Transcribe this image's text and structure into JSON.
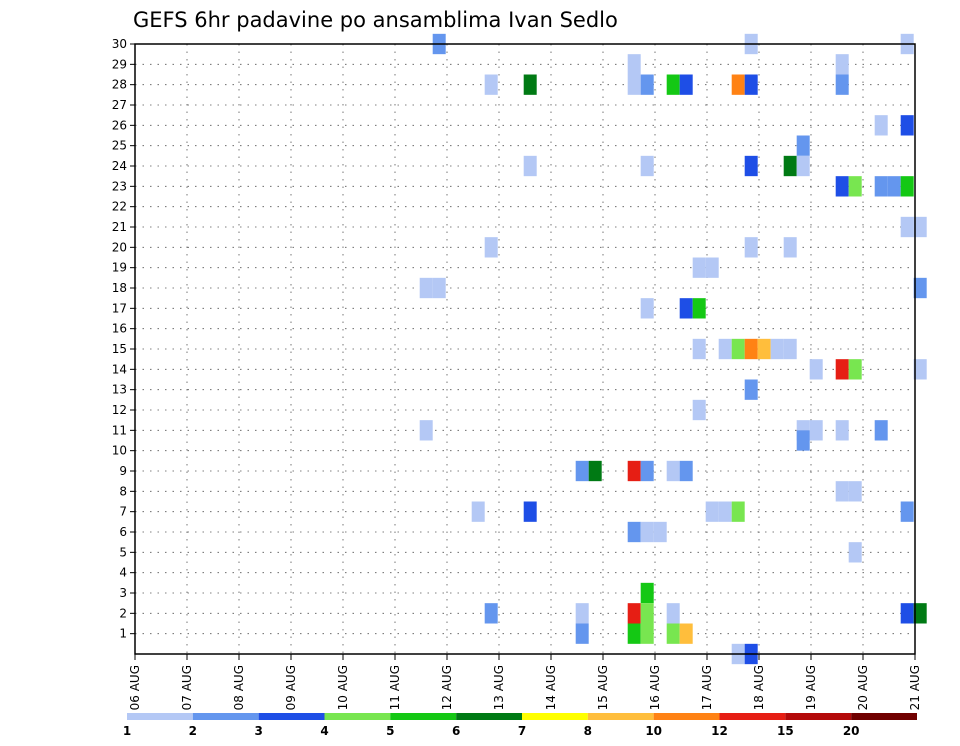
{
  "chart_data": {
    "type": "heatmap",
    "title": "GEFS 6hr padavine po ansamblima Ivan Sedlo",
    "x_tick_labels": [
      "06 AUG",
      "07 AUG",
      "08 AUG",
      "09 AUG",
      "10 AUG",
      "11 AUG",
      "12 AUG",
      "13 AUG",
      "14 AUG",
      "15 AUG",
      "16 AUG",
      "17 AUG",
      "18 AUG",
      "19 AUG",
      "20 AUG",
      "21 AUG"
    ],
    "y_tick_labels": [
      "1",
      "2",
      "3",
      "4",
      "5",
      "6",
      "7",
      "8",
      "9",
      "10",
      "11",
      "12",
      "13",
      "14",
      "15",
      "16",
      "17",
      "18",
      "19",
      "20",
      "21",
      "22",
      "23",
      "24",
      "25",
      "26",
      "27",
      "28",
      "29",
      "30"
    ],
    "xlim_days": [
      0,
      15
    ],
    "ylim_members": [
      0,
      30
    ],
    "grid": true,
    "colorbar": {
      "colors": [
        "#b4c8f5",
        "#6496ee",
        "#1e4ee6",
        "#78e650",
        "#14c814",
        "#007a14",
        "#ffff00",
        "#ffbe3c",
        "#ff8214",
        "#e61e14",
        "#b40a0a",
        "#700000"
      ],
      "tick_labels": [
        "1",
        "2",
        "3",
        "4",
        "5",
        "6",
        "7",
        "8",
        "10",
        "12",
        "15",
        "20"
      ]
    },
    "cells": [
      {
        "day": 5.85,
        "member": 30,
        "c": 1
      },
      {
        "day": 11.85,
        "member": 30,
        "c": 0
      },
      {
        "day": 14.85,
        "member": 30,
        "c": 0
      },
      {
        "day": 9.6,
        "member": 29,
        "c": 0
      },
      {
        "day": 13.6,
        "member": 29,
        "c": 0
      },
      {
        "day": 6.85,
        "member": 28,
        "c": 0
      },
      {
        "day": 7.6,
        "member": 28,
        "c": 5
      },
      {
        "day": 9.6,
        "member": 28,
        "c": 0
      },
      {
        "day": 9.85,
        "member": 28,
        "c": 1
      },
      {
        "day": 10.35,
        "member": 28,
        "c": 4
      },
      {
        "day": 10.6,
        "member": 28,
        "c": 2
      },
      {
        "day": 11.6,
        "member": 28,
        "c": 8
      },
      {
        "day": 11.85,
        "member": 28,
        "c": 2
      },
      {
        "day": 13.6,
        "member": 28,
        "c": 1
      },
      {
        "day": 14.35,
        "member": 26,
        "c": 0
      },
      {
        "day": 14.85,
        "member": 26,
        "c": 2
      },
      {
        "day": 12.85,
        "member": 25,
        "c": 1
      },
      {
        "day": 7.6,
        "member": 24,
        "c": 0
      },
      {
        "day": 9.85,
        "member": 24,
        "c": 0
      },
      {
        "day": 11.85,
        "member": 24,
        "c": 2
      },
      {
        "day": 12.6,
        "member": 24,
        "c": 5
      },
      {
        "day": 12.85,
        "member": 24,
        "c": 0
      },
      {
        "day": 13.6,
        "member": 23,
        "c": 2
      },
      {
        "day": 13.85,
        "member": 23,
        "c": 3
      },
      {
        "day": 14.35,
        "member": 23,
        "c": 1
      },
      {
        "day": 14.6,
        "member": 23,
        "c": 1
      },
      {
        "day": 14.85,
        "member": 23,
        "c": 4
      },
      {
        "day": 14.85,
        "member": 21,
        "c": 0
      },
      {
        "day": 15.1,
        "member": 21,
        "c": 0
      },
      {
        "day": 6.85,
        "member": 20,
        "c": 0
      },
      {
        "day": 11.85,
        "member": 20,
        "c": 0
      },
      {
        "day": 12.6,
        "member": 20,
        "c": 0
      },
      {
        "day": 10.85,
        "member": 19,
        "c": 0
      },
      {
        "day": 11.1,
        "member": 19,
        "c": 0
      },
      {
        "day": 5.6,
        "member": 18,
        "c": 0
      },
      {
        "day": 5.85,
        "member": 18,
        "c": 0
      },
      {
        "day": 15.1,
        "member": 18,
        "c": 1
      },
      {
        "day": 9.85,
        "member": 17,
        "c": 0
      },
      {
        "day": 10.6,
        "member": 17,
        "c": 2
      },
      {
        "day": 10.85,
        "member": 17,
        "c": 4
      },
      {
        "day": 10.85,
        "member": 15,
        "c": 0
      },
      {
        "day": 11.35,
        "member": 15,
        "c": 0
      },
      {
        "day": 11.6,
        "member": 15,
        "c": 3
      },
      {
        "day": 11.85,
        "member": 15,
        "c": 8
      },
      {
        "day": 12.1,
        "member": 15,
        "c": 7
      },
      {
        "day": 12.35,
        "member": 15,
        "c": 0
      },
      {
        "day": 12.6,
        "member": 15,
        "c": 0
      },
      {
        "day": 13.1,
        "member": 14,
        "c": 0
      },
      {
        "day": 13.6,
        "member": 14,
        "c": 9
      },
      {
        "day": 13.85,
        "member": 14,
        "c": 3
      },
      {
        "day": 15.1,
        "member": 14,
        "c": 0
      },
      {
        "day": 11.85,
        "member": 13,
        "c": 1
      },
      {
        "day": 10.85,
        "member": 12,
        "c": 0
      },
      {
        "day": 5.6,
        "member": 11,
        "c": 0
      },
      {
        "day": 12.85,
        "member": 11,
        "c": 0
      },
      {
        "day": 13.1,
        "member": 11,
        "c": 0
      },
      {
        "day": 13.6,
        "member": 11,
        "c": 0
      },
      {
        "day": 14.35,
        "member": 11,
        "c": 1
      },
      {
        "day": 12.85,
        "member": 10.5,
        "c": 1
      },
      {
        "day": 8.6,
        "member": 9,
        "c": 1
      },
      {
        "day": 8.85,
        "member": 9,
        "c": 5
      },
      {
        "day": 9.6,
        "member": 9,
        "c": 9
      },
      {
        "day": 9.85,
        "member": 9,
        "c": 1
      },
      {
        "day": 10.35,
        "member": 9,
        "c": 0
      },
      {
        "day": 10.6,
        "member": 9,
        "c": 1
      },
      {
        "day": 13.6,
        "member": 8,
        "c": 0
      },
      {
        "day": 13.85,
        "member": 8,
        "c": 0
      },
      {
        "day": 6.6,
        "member": 7,
        "c": 0
      },
      {
        "day": 7.6,
        "member": 7,
        "c": 2
      },
      {
        "day": 11.1,
        "member": 7,
        "c": 0
      },
      {
        "day": 11.35,
        "member": 7,
        "c": 0
      },
      {
        "day": 11.6,
        "member": 7,
        "c": 3
      },
      {
        "day": 14.85,
        "member": 7,
        "c": 1
      },
      {
        "day": 9.6,
        "member": 6,
        "c": 1
      },
      {
        "day": 9.85,
        "member": 6,
        "c": 0
      },
      {
        "day": 10.1,
        "member": 6,
        "c": 0
      },
      {
        "day": 13.85,
        "member": 5,
        "c": 0
      },
      {
        "day": 9.85,
        "member": 3,
        "c": 4
      },
      {
        "day": 6.85,
        "member": 2,
        "c": 1
      },
      {
        "day": 8.6,
        "member": 2,
        "c": 0
      },
      {
        "day": 9.6,
        "member": 2,
        "c": 9
      },
      {
        "day": 9.85,
        "member": 2,
        "c": 3
      },
      {
        "day": 10.35,
        "member": 2,
        "c": 0
      },
      {
        "day": 14.85,
        "member": 2,
        "c": 2
      },
      {
        "day": 15.1,
        "member": 2,
        "c": 5
      },
      {
        "day": 8.6,
        "member": 1,
        "c": 1
      },
      {
        "day": 9.6,
        "member": 1,
        "c": 4
      },
      {
        "day": 9.85,
        "member": 1,
        "c": 3
      },
      {
        "day": 10.35,
        "member": 1,
        "c": 3
      },
      {
        "day": 10.6,
        "member": 1,
        "c": 7
      },
      {
        "day": 11.6,
        "member": 0,
        "c": 0
      },
      {
        "day": 11.85,
        "member": 0,
        "c": 2
      }
    ]
  }
}
